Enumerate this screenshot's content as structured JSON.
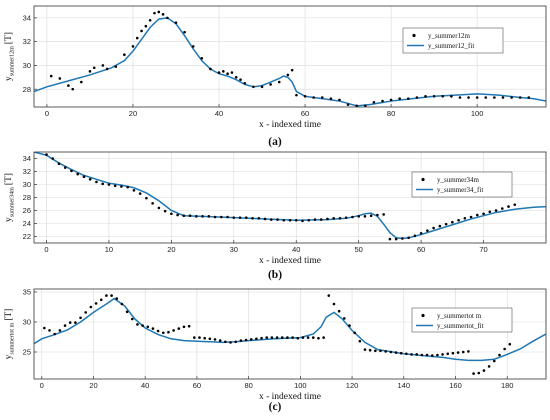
{
  "chart_data": [
    {
      "type": "line",
      "panel_label": "(a)",
      "xlabel": "x - indexed time",
      "ylabel": "y",
      "ylabel_sub": "summer12m",
      "unit": "[T]",
      "xlim": [
        -3,
        116
      ],
      "ylim": [
        26.5,
        35
      ],
      "xticks": [
        0,
        20,
        40,
        60,
        80,
        100
      ],
      "yticks": [
        28,
        30,
        32,
        34
      ],
      "grid": true,
      "legend_position": "top-right",
      "series": [
        {
          "name": "y_summer12m",
          "style": "points",
          "x": [
            1,
            3,
            5,
            6,
            8,
            10,
            11,
            13,
            14,
            16,
            18,
            20,
            21,
            22,
            23,
            24,
            25,
            26,
            27,
            28,
            30,
            32,
            34,
            36,
            38,
            40,
            41,
            42,
            43,
            44,
            45,
            46,
            48,
            50,
            52,
            54,
            56,
            57,
            58,
            60,
            62,
            64,
            66,
            68,
            70,
            72,
            74,
            76,
            78,
            80,
            82,
            84,
            86,
            88,
            90,
            92,
            94,
            96,
            98,
            100,
            102,
            104,
            106,
            108,
            110,
            112
          ],
          "y": [
            29.1,
            28.9,
            28.3,
            28.0,
            28.6,
            29.5,
            29.8,
            30.0,
            29.7,
            29.9,
            30.9,
            31.6,
            32.3,
            32.9,
            33.3,
            33.8,
            34.4,
            34.5,
            34.3,
            34.0,
            33.6,
            32.8,
            31.6,
            30.6,
            29.7,
            29.4,
            29.5,
            29.3,
            29.4,
            29.0,
            28.8,
            28.5,
            28.2,
            28.2,
            28.4,
            28.6,
            29.2,
            29.6,
            27.5,
            27.4,
            27.3,
            27.3,
            27.2,
            27.1,
            26.7,
            26.6,
            26.6,
            26.9,
            27.0,
            27.1,
            27.2,
            27.2,
            27.3,
            27.4,
            27.4,
            27.4,
            27.4,
            27.3,
            27.3,
            27.3,
            27.3,
            27.3,
            27.3,
            27.3,
            27.3,
            27.3
          ]
        },
        {
          "name": "y_summer12_fit",
          "style": "line",
          "x": [
            -3,
            0,
            5,
            10,
            15,
            18,
            20,
            22,
            24,
            26,
            28,
            30,
            32,
            34,
            36,
            38,
            40,
            42,
            44,
            46,
            48,
            50,
            52,
            54,
            55,
            56,
            57,
            58,
            60,
            62,
            64,
            66,
            68,
            70,
            72,
            75,
            80,
            85,
            90,
            95,
            100,
            105,
            110,
            113,
            116
          ],
          "y": [
            27.8,
            28.2,
            28.7,
            29.2,
            29.8,
            30.4,
            31.2,
            32.2,
            33.2,
            33.9,
            34.0,
            33.5,
            32.5,
            31.4,
            30.4,
            29.7,
            29.3,
            29.1,
            28.8,
            28.4,
            28.2,
            28.3,
            28.6,
            28.9,
            29.1,
            29.0,
            28.6,
            27.8,
            27.4,
            27.3,
            27.2,
            27.1,
            27.0,
            26.8,
            26.6,
            26.7,
            27.0,
            27.2,
            27.4,
            27.5,
            27.6,
            27.5,
            27.3,
            27.2,
            27.0
          ]
        }
      ]
    },
    {
      "type": "line",
      "panel_label": "(b)",
      "xlabel": "x - indexed time",
      "ylabel": "y",
      "ylabel_sub": "summer34m",
      "unit": "[T]",
      "xlim": [
        -2,
        80
      ],
      "ylim": [
        21,
        35
      ],
      "xticks": [
        0,
        10,
        20,
        30,
        40,
        50,
        60,
        70
      ],
      "yticks": [
        22,
        24,
        26,
        28,
        30,
        32,
        34
      ],
      "grid": true,
      "legend_position": "top-right",
      "series": [
        {
          "name": "y_summer34m",
          "style": "points",
          "x": [
            0,
            1,
            2,
            3,
            4,
            5,
            6,
            7,
            8,
            9,
            10,
            11,
            12,
            13,
            14,
            15,
            16,
            17,
            18,
            19,
            20,
            21,
            22,
            23,
            24,
            25,
            26,
            27,
            28,
            29,
            30,
            31,
            32,
            33,
            34,
            35,
            36,
            37,
            38,
            39,
            40,
            41,
            42,
            43,
            44,
            45,
            46,
            47,
            48,
            49,
            50,
            51,
            52,
            53,
            54,
            55,
            56,
            57,
            58,
            59,
            60,
            61,
            62,
            63,
            64,
            65,
            66,
            67,
            68,
            69,
            70,
            71,
            72,
            73,
            74,
            75
          ],
          "y": [
            34.6,
            34.0,
            33.2,
            32.6,
            32.1,
            31.6,
            31.2,
            30.8,
            30.4,
            30.1,
            30.0,
            29.8,
            29.7,
            29.6,
            29.1,
            28.6,
            27.9,
            27.1,
            26.4,
            25.9,
            25.5,
            25.3,
            25.2,
            25.2,
            25.1,
            25.1,
            25.1,
            25.0,
            25.0,
            25.0,
            24.9,
            24.9,
            24.9,
            24.8,
            24.8,
            24.7,
            24.6,
            24.6,
            24.5,
            24.5,
            24.5,
            24.4,
            24.5,
            24.6,
            24.6,
            24.7,
            24.8,
            24.8,
            24.9,
            25.0,
            25.1,
            25.1,
            25.2,
            25.3,
            25.4,
            21.6,
            21.6,
            21.7,
            21.8,
            22.1,
            22.5,
            22.9,
            23.3,
            23.6,
            23.9,
            24.2,
            24.5,
            24.8,
            25.0,
            25.3,
            25.5,
            25.8,
            26.0,
            26.3,
            26.6,
            26.9
          ]
        },
        {
          "name": "y_summer34_fit",
          "style": "line",
          "x": [
            -2,
            0,
            2,
            4,
            6,
            8,
            10,
            12,
            14,
            16,
            18,
            20,
            22,
            25,
            30,
            35,
            40,
            45,
            48,
            50,
            51,
            52,
            53,
            54,
            55,
            56,
            57,
            58,
            60,
            62,
            64,
            66,
            68,
            70,
            72,
            75,
            78,
            80
          ],
          "y": [
            35.0,
            34.5,
            33.3,
            32.3,
            31.4,
            30.8,
            30.2,
            29.9,
            29.5,
            28.7,
            27.5,
            26.0,
            25.2,
            25.1,
            24.9,
            24.7,
            24.5,
            24.6,
            24.8,
            25.2,
            25.5,
            25.6,
            25.1,
            23.9,
            22.6,
            21.8,
            21.7,
            21.8,
            22.3,
            22.9,
            23.5,
            24.1,
            24.7,
            25.2,
            25.7,
            26.2,
            26.5,
            26.6
          ]
        }
      ]
    },
    {
      "type": "line",
      "panel_label": "(c)",
      "xlabel": "x - indexed time",
      "ylabel": "y",
      "ylabel_sub": "summertot m",
      "unit": "[T]",
      "xlim": [
        -3,
        195
      ],
      "ylim": [
        20.5,
        35.5
      ],
      "xticks": [
        0,
        20,
        40,
        60,
        80,
        100,
        120,
        140,
        160,
        180
      ],
      "yticks": [
        25,
        30,
        35
      ],
      "grid": true,
      "legend_position": "top-right",
      "series": [
        {
          "name": "y_summertot m",
          "style": "points",
          "x": [
            1,
            3,
            5,
            7,
            9,
            11,
            13,
            15,
            17,
            19,
            21,
            23,
            25,
            27,
            29,
            31,
            33,
            35,
            37,
            39,
            41,
            43,
            45,
            47,
            49,
            51,
            53,
            55,
            57,
            59,
            61,
            63,
            65,
            67,
            69,
            71,
            73,
            75,
            77,
            79,
            81,
            83,
            85,
            87,
            89,
            91,
            93,
            95,
            97,
            99,
            101,
            103,
            105,
            107,
            109,
            111,
            113,
            115,
            117,
            119,
            121,
            123,
            125,
            127,
            129,
            131,
            133,
            135,
            137,
            139,
            141,
            143,
            145,
            147,
            149,
            151,
            153,
            155,
            157,
            159,
            161,
            163,
            165,
            167,
            169,
            171,
            173,
            175,
            177,
            179,
            181
          ],
          "y": [
            29.0,
            28.6,
            28.0,
            28.6,
            29.4,
            29.9,
            29.9,
            30.7,
            31.6,
            32.5,
            33.1,
            33.7,
            34.4,
            34.4,
            33.9,
            33.0,
            31.7,
            30.5,
            29.6,
            29.4,
            29.2,
            28.9,
            28.5,
            28.2,
            28.3,
            28.6,
            28.9,
            29.2,
            29.3,
            27.4,
            27.4,
            27.3,
            27.2,
            27.1,
            26.9,
            26.7,
            26.6,
            26.7,
            26.9,
            27.0,
            27.1,
            27.2,
            27.3,
            27.4,
            27.4,
            27.4,
            27.4,
            27.4,
            27.4,
            27.3,
            27.4,
            27.4,
            27.4,
            27.3,
            27.4,
            34.4,
            33.0,
            31.8,
            30.6,
            29.4,
            28.2,
            26.8,
            25.4,
            25.3,
            25.2,
            25.2,
            25.1,
            25.0,
            24.9,
            24.8,
            24.7,
            24.6,
            24.6,
            24.5,
            24.5,
            24.4,
            24.5,
            24.6,
            24.7,
            24.8,
            24.9,
            25.0,
            25.1,
            21.4,
            21.5,
            21.9,
            22.6,
            23.5,
            24.5,
            25.5,
            26.3
          ]
        },
        {
          "name": "y_summertot_fit",
          "style": "line",
          "x": [
            -3,
            0,
            5,
            10,
            15,
            20,
            25,
            28,
            32,
            36,
            40,
            45,
            50,
            55,
            60,
            65,
            70,
            75,
            80,
            90,
            100,
            105,
            108,
            110,
            113,
            116,
            120,
            125,
            130,
            140,
            150,
            155,
            160,
            165,
            170,
            175,
            180,
            185,
            190,
            195
          ],
          "y": [
            26.4,
            27.2,
            27.9,
            28.7,
            30.0,
            31.6,
            33.0,
            33.9,
            32.7,
            30.5,
            29.0,
            27.9,
            27.2,
            26.9,
            26.8,
            26.7,
            26.6,
            26.7,
            26.9,
            27.2,
            27.4,
            28.0,
            29.2,
            30.8,
            31.6,
            30.6,
            28.6,
            26.6,
            25.4,
            24.7,
            24.3,
            24.1,
            23.8,
            23.6,
            23.6,
            23.8,
            24.6,
            25.5,
            26.8,
            28.0
          ]
        }
      ]
    }
  ],
  "colors": {
    "fit_line": "#1f77b4",
    "points": "#000000",
    "grid": "#d9d9d9"
  }
}
